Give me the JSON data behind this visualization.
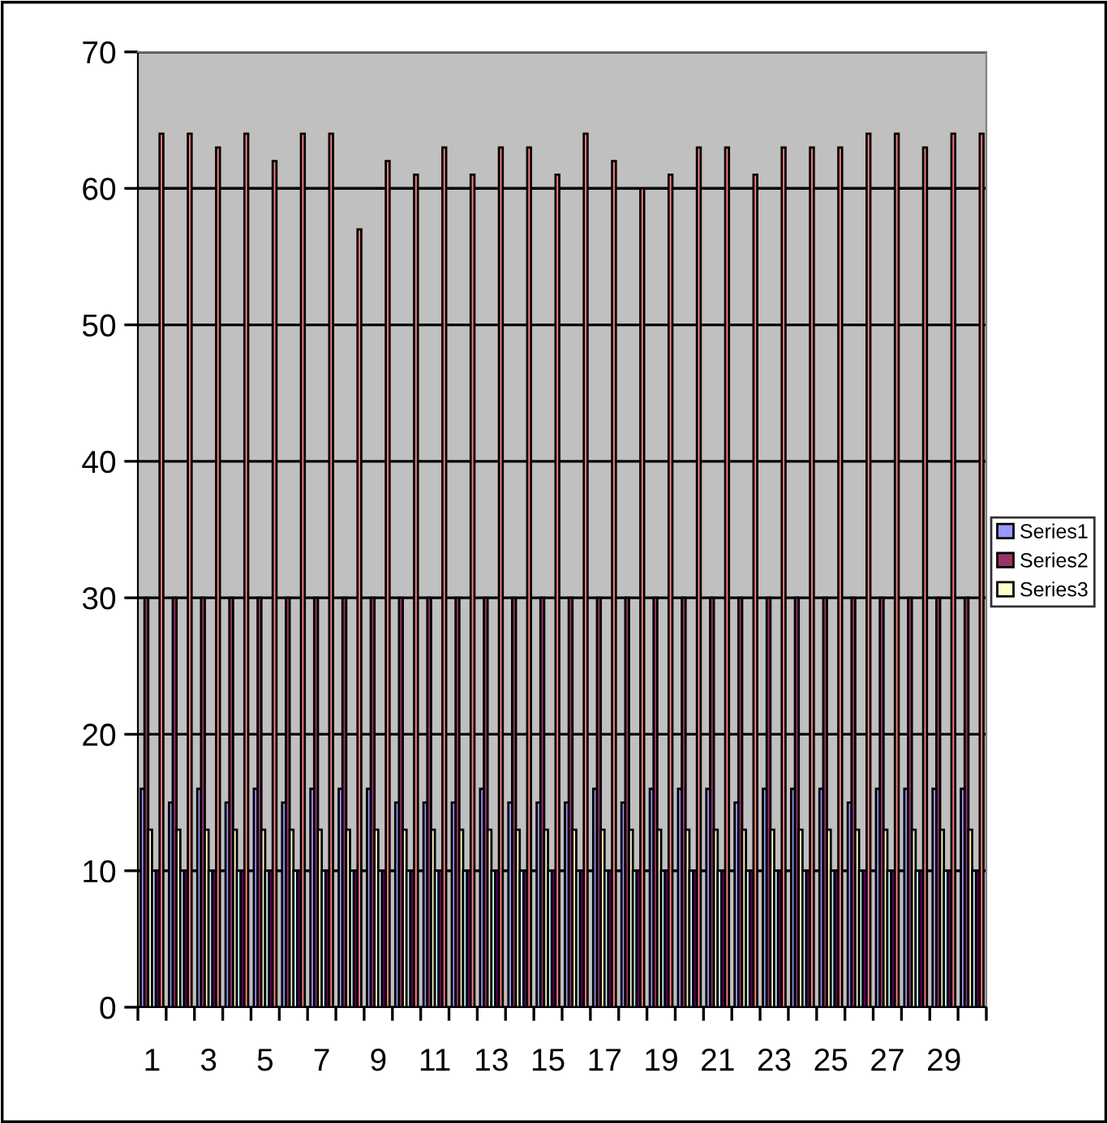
{
  "chart_data": {
    "type": "bar",
    "categories": [
      "1",
      null,
      "3",
      null,
      "5",
      null,
      "7",
      null,
      "9",
      null,
      "11",
      null,
      "13",
      null,
      "15",
      null,
      "17",
      null,
      "19",
      null,
      "21",
      null,
      "23",
      null,
      "25",
      null,
      "27",
      null,
      "29",
      null
    ],
    "series": [
      {
        "name": "Series1",
        "color": "#9999ff",
        "values": [
          16,
          15,
          16,
          15,
          16,
          15,
          16,
          16,
          16,
          15,
          15,
          15,
          16,
          15,
          15,
          15,
          16,
          15,
          16,
          16,
          16,
          15,
          16,
          16,
          16,
          15,
          16,
          16,
          16,
          16
        ]
      },
      {
        "name": "Series2",
        "color": "#993366",
        "values": [
          30,
          30,
          30,
          30,
          30,
          30,
          30,
          30,
          30,
          30,
          30,
          30,
          30,
          30,
          30,
          30,
          30,
          30,
          30,
          30,
          30,
          30,
          30,
          30,
          30,
          30,
          30,
          30,
          30,
          30
        ]
      },
      {
        "name": "Series3",
        "color": "#ffffcc",
        "values": [
          13,
          13,
          13,
          13,
          13,
          13,
          13,
          13,
          13,
          13,
          13,
          13,
          13,
          13,
          13,
          13,
          13,
          13,
          13,
          13,
          13,
          13,
          13,
          13,
          13,
          13,
          13,
          13,
          13,
          13
        ]
      },
      {
        "color": "#ccffff",
        "values": [
          10,
          10,
          10,
          10,
          10,
          10,
          10,
          10,
          10,
          10,
          10,
          10,
          10,
          10,
          10,
          10,
          10,
          10,
          10,
          10,
          10,
          10,
          10,
          10,
          10,
          10,
          10,
          10,
          10,
          10
        ]
      },
      {
        "color": "#660066",
        "values": [
          10,
          10,
          10,
          10,
          10,
          10,
          10,
          10,
          10,
          10,
          10,
          10,
          10,
          10,
          10,
          10,
          10,
          10,
          10,
          10,
          10,
          10,
          10,
          10,
          10,
          10,
          10,
          10,
          10,
          10
        ]
      },
      {
        "color": "#ff8080",
        "values": [
          64,
          64,
          63,
          64,
          62,
          64,
          64,
          57,
          62,
          61,
          63,
          61,
          63,
          63,
          61,
          64,
          62,
          60,
          61,
          63,
          63,
          61,
          63,
          63,
          63,
          64,
          64,
          63,
          64,
          64
        ]
      }
    ],
    "ylim": [
      0,
      70
    ],
    "yticks": [
      0,
      10,
      20,
      30,
      40,
      50,
      60,
      70
    ],
    "grid": "y",
    "legend": "right"
  }
}
